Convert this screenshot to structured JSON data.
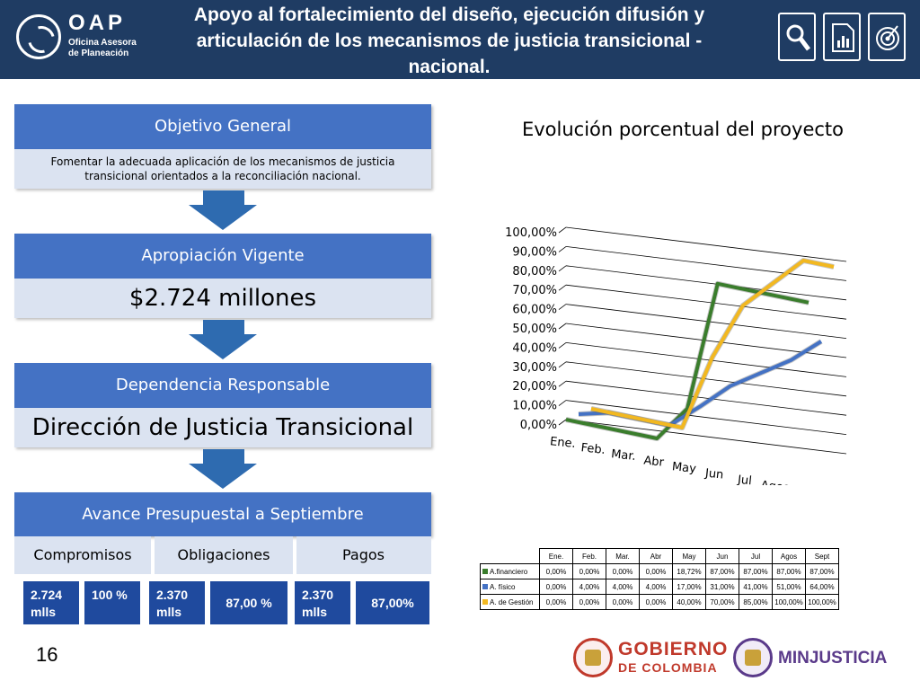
{
  "header": {
    "logo_main": "OAP",
    "logo_sub_1": "Oficina Asesora",
    "logo_sub_2": "de Planeación",
    "title": "Apoyo al fortalecimiento del diseño, ejecución difusión y articulación de los mecanismos de justicia transicional - nacional."
  },
  "icons": [
    "magnifier-icon",
    "report-chart-icon",
    "target-icon"
  ],
  "flow": {
    "objetivo_title": "Objetivo General",
    "objetivo_text": "Fomentar la adecuada aplicación de los mecanismos de justicia transicional orientados a la reconciliación nacional.",
    "apropiacion_title": "Apropiación Vigente",
    "apropiacion_value": "$2.724 millones",
    "dependencia_title": "Dependencia Responsable",
    "dependencia_value": "Dirección de Justicia Transicional",
    "avance_title": "Avance Presupuestal a Septiembre",
    "compromisos_label": "Compromisos",
    "obligaciones_label": "Obligaciones",
    "pagos_label": "Pagos",
    "compromisos_value": "2.724 mlls",
    "compromisos_pct": "100 %",
    "obligaciones_value": "2.370 mlls",
    "obligaciones_pct": "87,00 %",
    "pagos_value": "2.370 mlls",
    "pagos_pct": "87,00%"
  },
  "chart_data": {
    "type": "line",
    "title": "Evolución porcentual del proyecto",
    "categories": [
      "Ene.",
      "Feb.",
      "Mar.",
      "Abr",
      "May",
      "Jun",
      "Jul",
      "Agos",
      "Sept"
    ],
    "y_tick_labels": [
      "0,00%",
      "10,00%",
      "20,00%",
      "30,00%",
      "40,00%",
      "50,00%",
      "60,00%",
      "70,00%",
      "80,00%",
      "90,00%",
      "100,00%"
    ],
    "ylim": [
      0,
      100
    ],
    "grid": true,
    "series": [
      {
        "name": "A.financiero",
        "color": "#3a7d2c",
        "values": [
          0,
          0,
          0,
          0,
          18.72,
          87,
          87,
          87,
          87
        ],
        "labels": [
          "0,00%",
          "0,00%",
          "0,00%",
          "0,00%",
          "18,72%",
          "87,00%",
          "87,00%",
          "87,00%",
          "87,00%"
        ]
      },
      {
        "name": "A. físico",
        "color": "#4472c4",
        "values": [
          0,
          4,
          4,
          4,
          17,
          31,
          41,
          51,
          64
        ],
        "labels": [
          "0,00%",
          "4,00%",
          "4,00%",
          "4,00%",
          "17,00%",
          "31,00%",
          "41,00%",
          "51,00%",
          "64,00%"
        ]
      },
      {
        "name": "A. de Gestión",
        "color": "#f2b820",
        "values": [
          0,
          0,
          0,
          0,
          40,
          70,
          85,
          100,
          100
        ],
        "labels": [
          "0,00%",
          "0,00%",
          "0,00%",
          "0,00%",
          "40,00%",
          "70,00%",
          "85,00%",
          "100,00%",
          "100,00%"
        ]
      }
    ]
  },
  "page_number": "16",
  "footer": {
    "gobierno_1": "GOBIERNO",
    "gobierno_2": "DE COLOMBIA",
    "minjusticia": "MINJUSTICIA"
  }
}
